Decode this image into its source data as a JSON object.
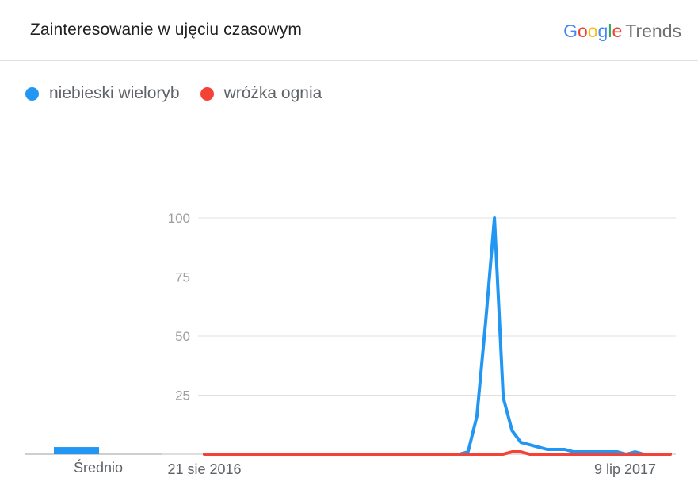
{
  "header": {
    "title": "Zainteresowanie w ujęciu czasowym",
    "brand_letters": [
      "G",
      "o",
      "o",
      "g",
      "l",
      "e"
    ],
    "brand_colors": [
      "#4285F4",
      "#EA4335",
      "#FBBC05",
      "#4285F4",
      "#34A853",
      "#EA4335"
    ],
    "brand_suffix": "Trends"
  },
  "legend": [
    {
      "label": "niebieski wieloryb",
      "color": "#2196F3"
    },
    {
      "label": "wróżka ognia",
      "color": "#F44336"
    }
  ],
  "chart_data": [
    {
      "type": "bar",
      "categories": [
        "Średnio"
      ],
      "series": [
        {
          "name": "niebieski wieloryb",
          "values": [
            3
          ],
          "color": "#2196F3"
        }
      ]
    },
    {
      "type": "line",
      "x_start_label": "21 sie 2016",
      "x_end_label": "9 lip 2017",
      "y_ticks": [
        25,
        50,
        75,
        100
      ],
      "ylim": [
        0,
        100
      ],
      "grid": true,
      "series": [
        {
          "name": "niebieski wieloryb",
          "color": "#2196F3",
          "values": [
            0,
            0,
            0,
            0,
            0,
            0,
            0,
            0,
            0,
            0,
            0,
            0,
            0,
            0,
            0,
            0,
            0,
            0,
            0,
            0,
            0,
            0,
            0,
            0,
            0,
            0,
            0,
            0,
            0,
            0,
            1,
            16,
            56,
            100,
            24,
            10,
            5,
            4,
            3,
            2,
            2,
            2,
            1,
            1,
            1,
            1,
            1,
            1,
            0,
            1,
            0,
            0,
            0,
            0
          ]
        },
        {
          "name": "wróżka ognia",
          "color": "#F44336",
          "values": [
            0,
            0,
            0,
            0,
            0,
            0,
            0,
            0,
            0,
            0,
            0,
            0,
            0,
            0,
            0,
            0,
            0,
            0,
            0,
            0,
            0,
            0,
            0,
            0,
            0,
            0,
            0,
            0,
            0,
            0,
            0,
            0,
            0,
            0,
            0,
            1,
            1,
            0,
            0,
            0,
            0,
            0,
            0,
            0,
            0,
            0,
            0,
            0,
            0,
            0,
            0,
            0,
            0,
            0
          ]
        }
      ]
    }
  ]
}
